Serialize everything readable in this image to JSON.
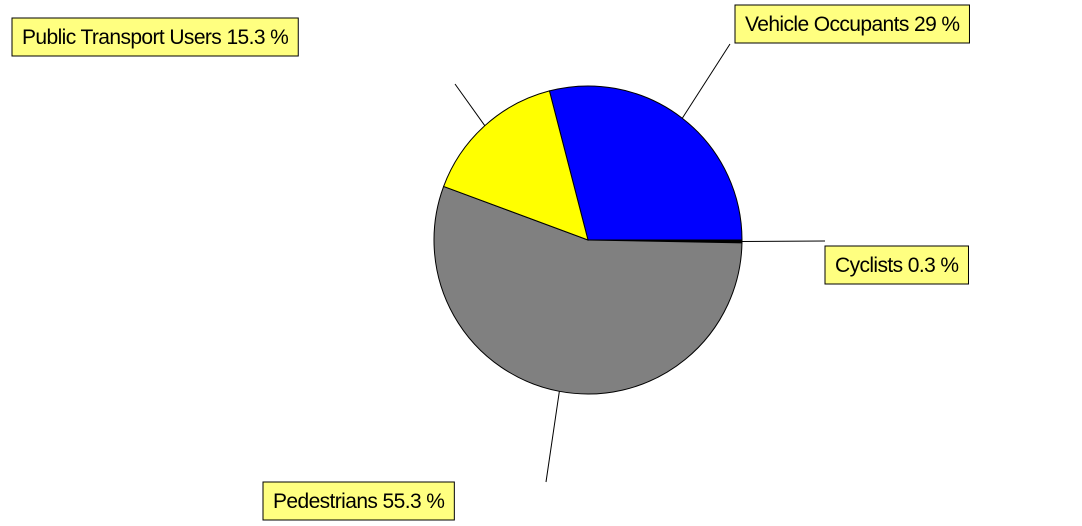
{
  "chart_data": {
    "type": "pie",
    "categories": [
      "Vehicle Occupants",
      "Cyclists",
      "Pedestrians",
      "Public Transport Users"
    ],
    "values": [
      29,
      0.3,
      55.3,
      15.3
    ],
    "value_labels": [
      "29 %",
      "0.3 %",
      "55.3 %",
      "15.3 %"
    ],
    "colors": [
      "#0000ff",
      "#000000",
      "#808080",
      "#ffff00"
    ]
  }
}
